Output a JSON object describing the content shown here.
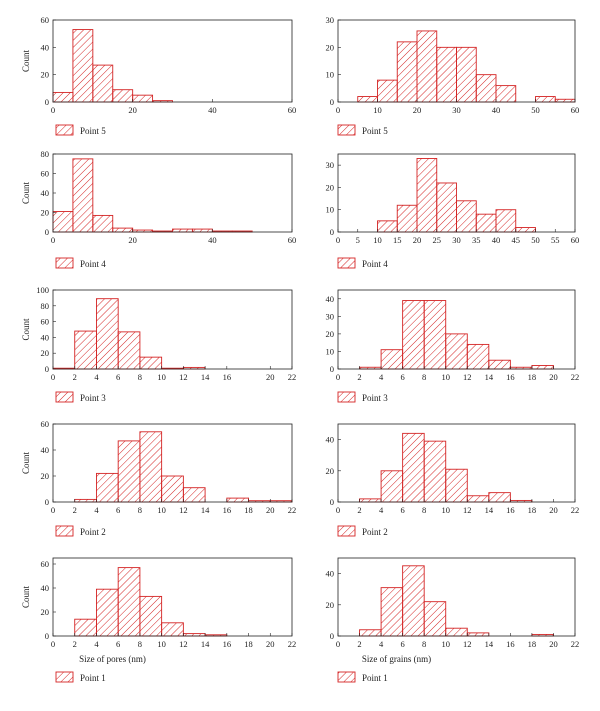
{
  "colors": {
    "bar_stroke": "#d42424",
    "hatch": "#d42424",
    "axis": "#222222"
  },
  "chart_data": [
    {
      "type": "bar",
      "id": "p5-pores",
      "legend": "Point 5",
      "ylabel": "Count",
      "xlabel": "",
      "xlim": [
        0,
        60
      ],
      "ylim": [
        0,
        60
      ],
      "xticks": [
        0,
        20,
        40,
        60
      ],
      "yticks": [
        0,
        20,
        40,
        60
      ],
      "bin_width": 5,
      "bin_start": 0,
      "values": [
        7,
        53,
        27,
        9,
        5,
        1,
        0,
        0,
        0,
        0,
        0,
        0
      ]
    },
    {
      "type": "bar",
      "id": "p5-grains",
      "legend": "Point 5",
      "ylabel": "",
      "xlabel": "",
      "xlim": [
        0,
        60
      ],
      "ylim": [
        0,
        30
      ],
      "xticks": [
        0,
        10,
        20,
        30,
        40,
        50,
        60
      ],
      "yticks": [
        0,
        10,
        20,
        30
      ],
      "bin_width": 5,
      "bin_start": 0,
      "values": [
        0,
        2,
        8,
        22,
        26,
        20,
        20,
        10,
        6,
        0,
        2,
        1
      ]
    },
    {
      "type": "bar",
      "id": "p4-pores",
      "legend": "Point 4",
      "ylabel": "Count",
      "xlabel": "",
      "xlim": [
        0,
        60
      ],
      "ylim": [
        0,
        80
      ],
      "xticks": [
        0,
        20,
        40,
        60
      ],
      "yticks": [
        0,
        20,
        40,
        60,
        80
      ],
      "bin_width": 5,
      "bin_start": 0,
      "values": [
        21,
        75,
        17,
        4,
        2,
        1,
        3,
        3,
        1,
        1,
        0,
        0
      ]
    },
    {
      "type": "bar",
      "id": "p4-grains",
      "legend": "Point 4",
      "ylabel": "",
      "xlabel": "",
      "xlim": [
        0,
        60
      ],
      "ylim": [
        0,
        35
      ],
      "xticks": [
        0,
        5,
        10,
        15,
        20,
        25,
        30,
        35,
        40,
        45,
        50,
        55,
        60
      ],
      "yticks": [
        0,
        10,
        20,
        30
      ],
      "bin_width": 5,
      "bin_start": 0,
      "values": [
        0,
        0,
        5,
        12,
        33,
        22,
        14,
        8,
        10,
        2,
        0,
        0
      ]
    },
    {
      "type": "bar",
      "id": "p3-pores",
      "legend": "Point 3",
      "ylabel": "Count",
      "xlabel": "",
      "xlim": [
        0,
        22
      ],
      "ylim": [
        0,
        100
      ],
      "xticks": [
        0,
        2,
        4,
        6,
        8,
        10,
        12,
        14,
        16,
        20,
        22
      ],
      "yticks": [
        0,
        20,
        40,
        60,
        80,
        100
      ],
      "bin_width": 2,
      "bin_start": 0,
      "values": [
        1,
        48,
        89,
        47,
        15,
        1,
        2,
        0,
        0,
        0,
        0
      ]
    },
    {
      "type": "bar",
      "id": "p3-grains",
      "legend": "Point 3",
      "ylabel": "",
      "xlabel": "",
      "xlim": [
        0,
        22
      ],
      "ylim": [
        0,
        45
      ],
      "xticks": [
        0,
        2,
        4,
        6,
        8,
        10,
        12,
        14,
        16,
        18,
        20,
        22
      ],
      "yticks": [
        0,
        10,
        20,
        30,
        40
      ],
      "bin_width": 2,
      "bin_start": 0,
      "values": [
        0,
        1,
        11,
        39,
        39,
        20,
        14,
        5,
        1,
        2,
        0
      ]
    },
    {
      "type": "bar",
      "id": "p2-pores",
      "legend": "Point 2",
      "ylabel": "Count",
      "xlabel": "",
      "xlim": [
        0,
        22
      ],
      "ylim": [
        0,
        60
      ],
      "xticks": [
        0,
        2,
        4,
        6,
        8,
        10,
        12,
        14,
        16,
        18,
        20,
        22
      ],
      "yticks": [
        0,
        20,
        40,
        60
      ],
      "bin_width": 2,
      "bin_start": 0,
      "values": [
        0,
        2,
        22,
        47,
        54,
        20,
        11,
        0,
        3,
        1,
        1
      ]
    },
    {
      "type": "bar",
      "id": "p2-grains",
      "legend": "Point 2",
      "ylabel": "",
      "xlabel": "",
      "xlim": [
        0,
        22
      ],
      "ylim": [
        0,
        50
      ],
      "xticks": [
        0,
        2,
        4,
        6,
        8,
        10,
        12,
        14,
        16,
        18,
        20,
        22
      ],
      "yticks": [
        0,
        20,
        40
      ],
      "bin_width": 2,
      "bin_start": 0,
      "values": [
        0,
        2,
        20,
        44,
        39,
        21,
        4,
        6,
        1,
        0,
        0
      ]
    },
    {
      "type": "bar",
      "id": "p1-pores",
      "legend": "Point 1",
      "ylabel": "Count",
      "xlabel": "Size of pores (nm)",
      "xlim": [
        0,
        22
      ],
      "ylim": [
        0,
        65
      ],
      "xticks": [
        0,
        2,
        4,
        6,
        8,
        10,
        12,
        14,
        16,
        18,
        20,
        22
      ],
      "yticks": [
        0,
        20,
        40,
        60
      ],
      "bin_width": 2,
      "bin_start": 0,
      "values": [
        0,
        14,
        39,
        57,
        33,
        11,
        2,
        1,
        0,
        0,
        0
      ]
    },
    {
      "type": "bar",
      "id": "p1-grains",
      "legend": "Point 1",
      "ylabel": "",
      "xlabel": "Size of grains (nm)",
      "xlim": [
        0,
        22
      ],
      "ylim": [
        0,
        50
      ],
      "xticks": [
        0,
        2,
        4,
        6,
        8,
        10,
        12,
        14,
        16,
        18,
        20,
        22
      ],
      "yticks": [
        0,
        20,
        40
      ],
      "bin_width": 2,
      "bin_start": 0,
      "values": [
        0,
        4,
        31,
        45,
        22,
        5,
        2,
        0,
        0,
        1,
        0
      ]
    }
  ]
}
